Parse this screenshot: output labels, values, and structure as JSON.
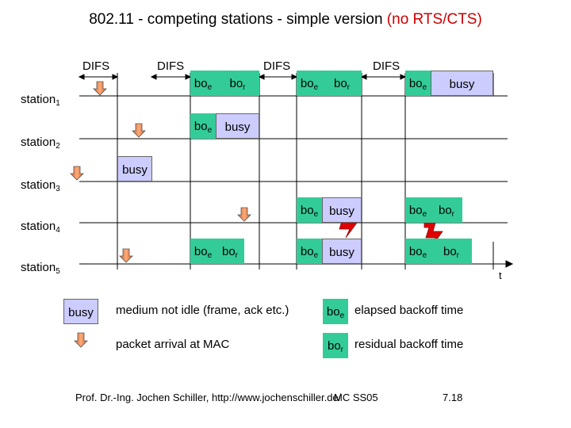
{
  "title": {
    "main": "802.11 - competing stations - simple version",
    "accent": "(no RTS/CTS)"
  },
  "difs_label": "DIFS",
  "stations": [
    {
      "base": "station",
      "sub": "1"
    },
    {
      "base": "station",
      "sub": "2"
    },
    {
      "base": "station",
      "sub": "3"
    },
    {
      "base": "station",
      "sub": "4"
    },
    {
      "base": "station",
      "sub": "5"
    }
  ],
  "box_text": {
    "bo": "bo",
    "e": "e",
    "r": "r",
    "busy": "busy"
  },
  "time_label": "t",
  "legend": {
    "busy_desc": "medium not idle (frame, ack etc.)",
    "arrival_desc": "packet arrival at MAC",
    "boe_desc": "elapsed backoff time",
    "bor_desc": "residual backoff time"
  },
  "footer": {
    "author": "Prof. Dr.-Ing. Jochen Schiller, http://www.jochenschiller.de/",
    "course": "MC SS05",
    "page": "7.18"
  },
  "colors": {
    "backoff": "#33cc99",
    "busy": "#ccccff",
    "arrival": "#ff9966",
    "collision": "#e00000",
    "accent": "#cc0000"
  }
}
